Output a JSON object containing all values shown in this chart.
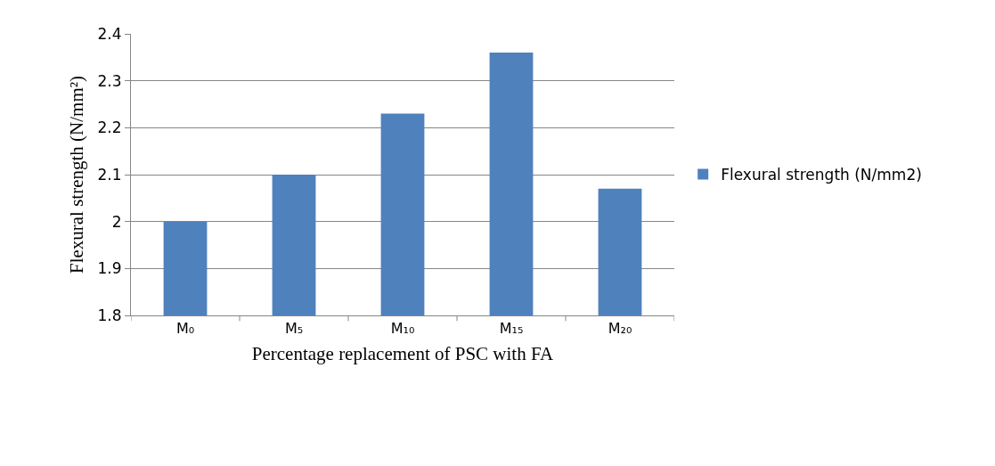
{
  "chart_data": {
    "type": "bar",
    "xlabel": "Percentage replacement of PSC with FA",
    "ylabel": "Flexural strength (N/mm²)",
    "categories": [
      "M₀",
      "M₅",
      "M₁₀",
      "M₁₅",
      "M₂₀"
    ],
    "series": [
      {
        "name": "Flexural strength (N/mm2)",
        "color": "#4f81bd",
        "values": [
          2.0,
          2.1,
          2.23,
          2.36,
          2.07
        ]
      }
    ],
    "ylim": [
      1.8,
      2.4
    ],
    "yticks": [
      1.8,
      1.9,
      2.1,
      2.2,
      2.3,
      2.4,
      {
        "value": 2,
        "label": "2"
      }
    ],
    "grid": "y",
    "legend": "right"
  }
}
